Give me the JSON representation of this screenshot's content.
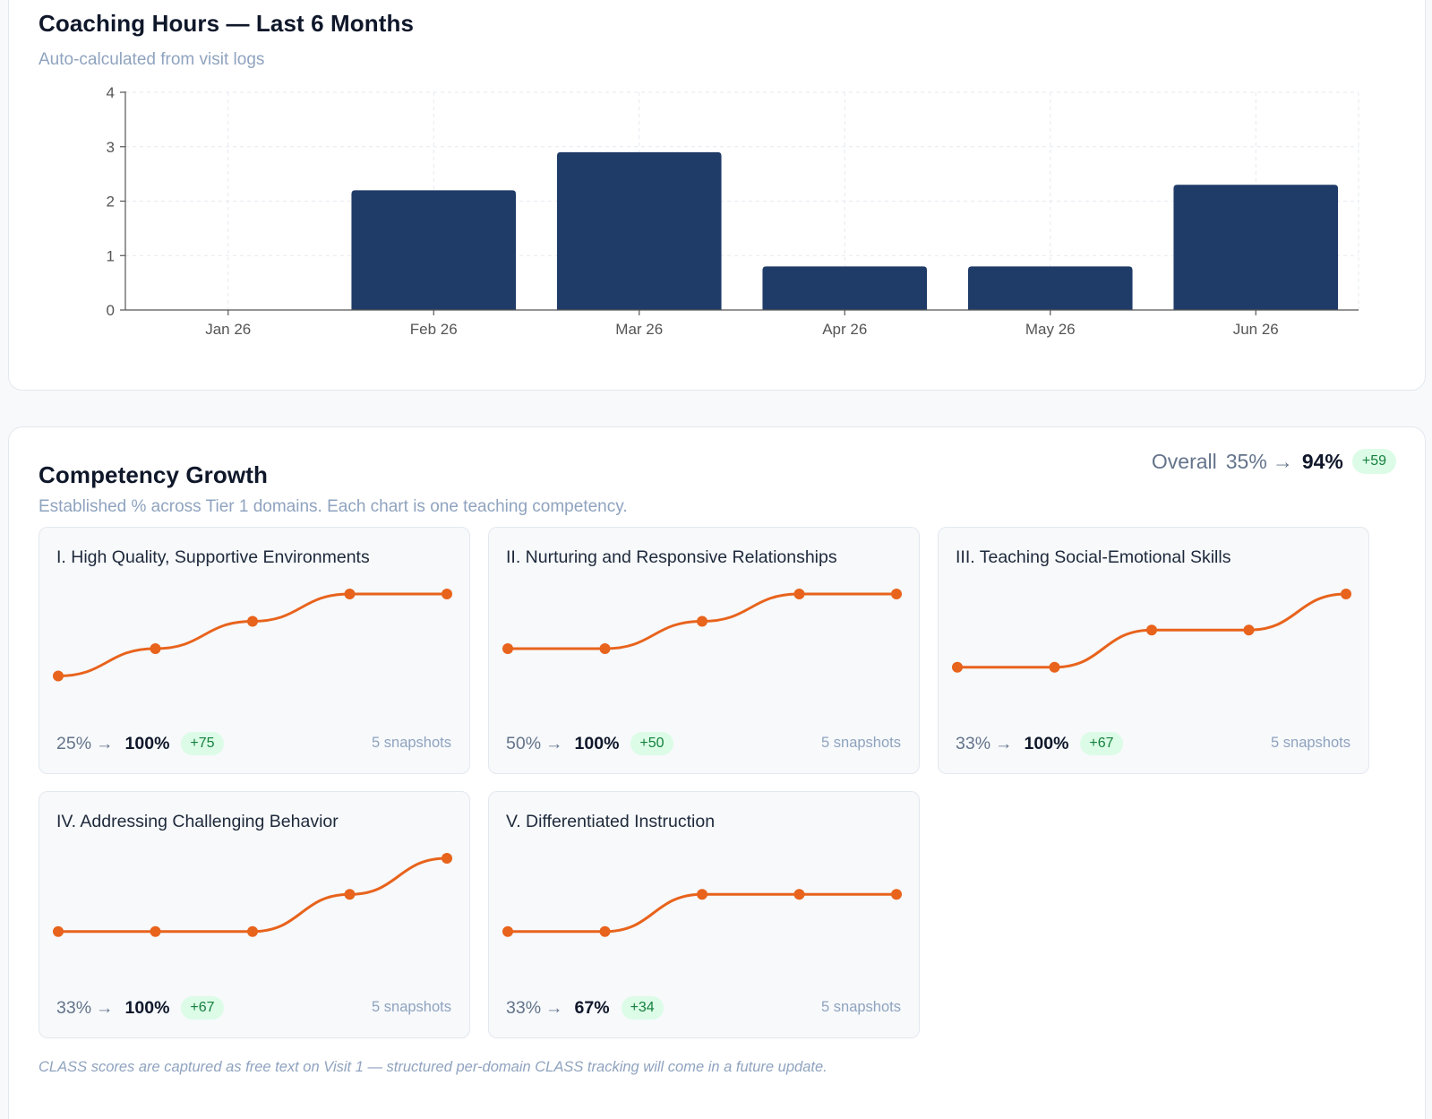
{
  "hours": {
    "title": "Coaching Hours — Last 6 Months",
    "subtitle": "Auto-calculated from visit logs"
  },
  "chart_data": {
    "type": "bar",
    "categories": [
      "Jan 26",
      "Feb 26",
      "Mar 26",
      "Apr 26",
      "May 26",
      "Jun 26"
    ],
    "values": [
      0,
      2.2,
      2.9,
      0.8,
      0.8,
      2.3
    ],
    "title": "Coaching Hours — Last 6 Months",
    "xlabel": "",
    "ylabel": "",
    "ylim": [
      0,
      4
    ],
    "yticks": [
      0,
      1,
      2,
      3,
      4
    ],
    "grid": true,
    "legend": "none",
    "bar_color": "#1f3b68"
  },
  "growth": {
    "title": "Competency Growth",
    "subtitle": "Established % across Tier 1 domains. Each chart is one teaching competency.",
    "overall": {
      "label": "Overall",
      "from": "35%",
      "arrow": "→",
      "to": "94%",
      "delta": "+59"
    },
    "line_color": "#e8631c",
    "domains": [
      {
        "title": "I. High Quality, Supportive Environments",
        "values": [
          25,
          50,
          75,
          100,
          100
        ],
        "from": "25%",
        "to": "100%",
        "delta": "+75",
        "snapshots": "5 snapshots"
      },
      {
        "title": "II. Nurturing and Responsive Relationships",
        "values": [
          50,
          50,
          75,
          100,
          100
        ],
        "from": "50%",
        "to": "100%",
        "delta": "+50",
        "snapshots": "5 snapshots"
      },
      {
        "title": "III. Teaching Social-Emotional Skills",
        "values": [
          33,
          33,
          67,
          67,
          100
        ],
        "from": "33%",
        "to": "100%",
        "delta": "+67",
        "snapshots": "5 snapshots"
      },
      {
        "title": "IV. Addressing Challenging Behavior",
        "values": [
          33,
          33,
          33,
          67,
          100
        ],
        "from": "33%",
        "to": "100%",
        "delta": "+67",
        "snapshots": "5 snapshots"
      },
      {
        "title": "V. Differentiated Instruction",
        "values": [
          33,
          33,
          67,
          67,
          67
        ],
        "from": "33%",
        "to": "67%",
        "delta": "+34",
        "snapshots": "5 snapshots"
      }
    ],
    "arrow": "→",
    "footnote": "CLASS scores are captured as free text on Visit 1 — structured per-domain CLASS tracking will come in a future update."
  }
}
